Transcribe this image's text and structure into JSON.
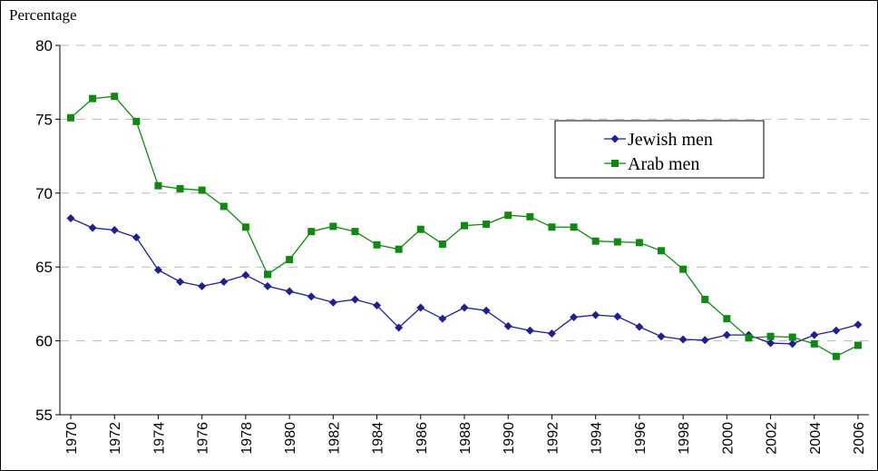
{
  "chart_data": {
    "type": "line",
    "y_label": "Percentage",
    "x": [
      1970,
      1971,
      1972,
      1973,
      1974,
      1975,
      1976,
      1977,
      1978,
      1979,
      1980,
      1981,
      1982,
      1983,
      1984,
      1985,
      1986,
      1987,
      1988,
      1989,
      1990,
      1991,
      1992,
      1993,
      1994,
      1995,
      1996,
      1997,
      1998,
      1999,
      2000,
      2001,
      2002,
      2003,
      2004,
      2005,
      2006
    ],
    "series": [
      {
        "name": "Jewish men",
        "color": "#1f1f8f",
        "marker": "diamond",
        "values": [
          68.3,
          67.65,
          67.5,
          67.0,
          64.8,
          64.0,
          63.7,
          64.0,
          64.45,
          63.7,
          63.35,
          63.0,
          62.6,
          62.8,
          62.4,
          60.9,
          62.25,
          61.5,
          62.25,
          62.05,
          61.0,
          60.7,
          60.5,
          61.6,
          61.75,
          61.65,
          60.95,
          60.3,
          60.1,
          60.05,
          60.4,
          60.4,
          59.85,
          59.8,
          60.4,
          60.7,
          61.1
        ]
      },
      {
        "name": "Arab men",
        "color": "#118811",
        "marker": "square",
        "values": [
          75.1,
          76.4,
          76.55,
          74.85,
          70.5,
          70.3,
          70.2,
          69.1,
          67.7,
          64.5,
          65.5,
          67.4,
          67.75,
          67.4,
          66.5,
          66.2,
          67.55,
          66.55,
          67.8,
          67.9,
          68.5,
          68.4,
          67.7,
          67.7,
          66.75,
          66.7,
          66.65,
          66.1,
          64.85,
          62.8,
          61.5,
          60.2,
          60.3,
          60.25,
          59.8,
          58.95,
          59.7
        ]
      }
    ],
    "xlim": [
      1970,
      2006
    ],
    "xticks": [
      1970,
      1972,
      1974,
      1976,
      1978,
      1980,
      1982,
      1984,
      1986,
      1988,
      1990,
      1992,
      1994,
      1996,
      1998,
      2000,
      2002,
      2004,
      2006
    ],
    "ylim": [
      55,
      80
    ],
    "yticks": [
      55,
      60,
      65,
      70,
      75,
      80
    ],
    "grid": true
  }
}
